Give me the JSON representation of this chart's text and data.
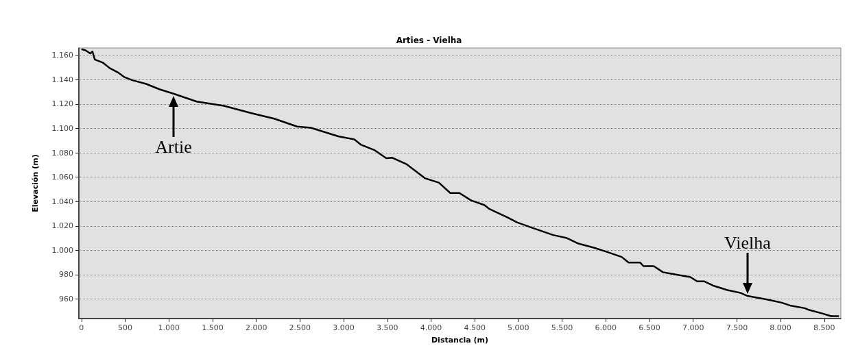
{
  "chart_data": {
    "type": "line",
    "title": "Arties - Vielha",
    "xlabel": "Distancia (m)",
    "ylabel": "Elevación (m)",
    "series": [
      {
        "color": "#000000",
        "x": [
          0,
          47,
          100,
          126,
          152,
          243,
          322,
          426,
          492,
          583,
          740,
          896,
          1053,
          1318,
          1630,
          1946,
          2206,
          2467,
          2624,
          2938,
          3122,
          3200,
          3357,
          3488,
          3553,
          3723,
          3933,
          4090,
          4220,
          4325,
          4456,
          4613,
          4665,
          4875,
          4980,
          5137,
          5398,
          5555,
          5686,
          5868,
          5999,
          6182,
          6261,
          6392,
          6431,
          6549,
          6654,
          6811,
          6968,
          7046,
          7125,
          7229,
          7386,
          7543,
          7622,
          7857,
          8014,
          8119,
          8276,
          8328,
          8485,
          8577,
          8668
        ],
        "values": [
          1165,
          1164,
          1161.5,
          1163,
          1156.5,
          1154,
          1149.5,
          1145.5,
          1142,
          1139.5,
          1136.5,
          1132,
          1128.5,
          1122,
          1118.5,
          1112.5,
          1108,
          1101.5,
          1100.5,
          1093.5,
          1091,
          1086.5,
          1082,
          1075.5,
          1076,
          1070.5,
          1059,
          1055.5,
          1047,
          1047,
          1041,
          1037,
          1034,
          1027,
          1023,
          1019,
          1012.5,
          1010,
          1005.5,
          1002,
          999,
          994.5,
          990,
          990,
          987,
          987,
          982,
          980,
          978,
          974.5,
          974.5,
          971,
          967.5,
          965,
          962.5,
          959.5,
          957,
          954.5,
          952.5,
          951,
          948,
          946,
          946
        ]
      }
    ],
    "xlim": [
      -30,
      8690
    ],
    "ylim": [
      944,
      1166
    ],
    "xticks": [
      0,
      500,
      {
        "value": 1000,
        "label": "1.000"
      },
      {
        "value": 1500,
        "label": "1.500"
      },
      {
        "value": 2000,
        "label": "2.000"
      },
      {
        "value": 2500,
        "label": "2.500"
      },
      {
        "value": 3000,
        "label": "3.000"
      },
      {
        "value": 3500,
        "label": "3.500"
      },
      {
        "value": 4000,
        "label": "4.000"
      },
      {
        "value": 4500,
        "label": "4.500"
      },
      {
        "value": 5000,
        "label": "5.000"
      },
      {
        "value": 5500,
        "label": "5.500"
      },
      {
        "value": 6000,
        "label": "6.000"
      },
      {
        "value": 6500,
        "label": "6.500"
      },
      {
        "value": 7000,
        "label": "7.000"
      },
      {
        "value": 7500,
        "label": "7.500"
      },
      {
        "value": 8000,
        "label": "8.000"
      },
      {
        "value": 8500,
        "label": "8.500"
      }
    ],
    "yticks": [
      960,
      980,
      {
        "value": 1000,
        "label": "1.000"
      },
      {
        "value": 1020,
        "label": "1.020"
      },
      {
        "value": 1040,
        "label": "1.040"
      },
      {
        "value": 1060,
        "label": "1.060"
      },
      {
        "value": 1080,
        "label": "1.080"
      },
      {
        "value": 1100,
        "label": "1.100"
      },
      {
        "value": 1120,
        "label": "1.120"
      },
      {
        "value": 1140,
        "label": "1.140"
      },
      {
        "value": 1160,
        "label": "1.160"
      }
    ],
    "annotations": [
      {
        "text": "Artie",
        "x": 1053,
        "y": 1128.5
      },
      {
        "text": "Vielha",
        "x": 7622,
        "y": 962.5
      }
    ],
    "grid": "y",
    "marker": "none",
    "line_style": "solid"
  }
}
